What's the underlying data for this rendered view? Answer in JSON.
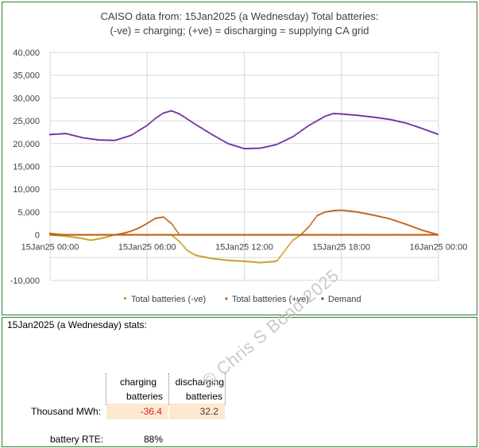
{
  "chart_data": {
    "type": "line",
    "title_line1": "CAISO data from:  15Jan2025  (a Wednesday)   Total batteries:",
    "title_line2": "(-ve) = charging;   (+ve) = discharging = supplying CA grid",
    "y_ticks": [
      "40,000",
      "35,000",
      "30,000",
      "25,000",
      "20,000",
      "15,000",
      "10,000",
      "5,000",
      "0",
      "-10,000"
    ],
    "ylim": [
      -10000,
      40000
    ],
    "x_ticks": [
      "15Jan25 00:00",
      "15Jan25 06:00",
      "15Jan25 12:00",
      "15Jan25 18:00",
      "16Jan25 00:00"
    ],
    "x_range_hours": [
      0,
      24
    ],
    "grid": true,
    "legend_position": "bottom",
    "series": [
      {
        "name": "Total batteries (-ve)",
        "color": "#c9a227",
        "marker": "square",
        "points": [
          [
            0,
            0
          ],
          [
            1,
            -300
          ],
          [
            2,
            -800
          ],
          [
            2.5,
            -1200
          ],
          [
            3,
            -900
          ],
          [
            3.5,
            -500
          ],
          [
            4,
            0
          ],
          [
            7.5,
            0
          ],
          [
            8,
            -1500
          ],
          [
            8.5,
            -3500
          ],
          [
            9,
            -4500
          ],
          [
            10,
            -5200
          ],
          [
            11,
            -5600
          ],
          [
            12,
            -5800
          ],
          [
            13,
            -6100
          ],
          [
            14,
            -5800
          ],
          [
            14.5,
            -3500
          ],
          [
            15,
            -1200
          ],
          [
            15.5,
            0
          ],
          [
            24,
            0
          ]
        ]
      },
      {
        "name": "Total batteries (+ve)",
        "color": "#c0601b",
        "marker": "dot",
        "points": [
          [
            0,
            300
          ],
          [
            0.5,
            100
          ],
          [
            1,
            0
          ],
          [
            4,
            0
          ],
          [
            4.5,
            300
          ],
          [
            5,
            800
          ],
          [
            5.5,
            1500
          ],
          [
            6,
            2500
          ],
          [
            6.5,
            3600
          ],
          [
            7,
            3900
          ],
          [
            7.5,
            2500
          ],
          [
            8,
            0
          ],
          [
            15.5,
            0
          ],
          [
            16,
            1800
          ],
          [
            16.5,
            4200
          ],
          [
            17,
            5000
          ],
          [
            17.5,
            5300
          ],
          [
            18,
            5400
          ],
          [
            19,
            5000
          ],
          [
            20,
            4300
          ],
          [
            21,
            3500
          ],
          [
            22,
            2300
          ],
          [
            23,
            1000
          ],
          [
            24,
            0
          ]
        ]
      },
      {
        "name": "Demand",
        "color": "#7030a0",
        "marker": "dot",
        "points": [
          [
            0,
            22000
          ],
          [
            1,
            22200
          ],
          [
            2,
            21300
          ],
          [
            3,
            20800
          ],
          [
            4,
            20700
          ],
          [
            5,
            21800
          ],
          [
            6,
            24000
          ],
          [
            6.5,
            25500
          ],
          [
            7,
            26700
          ],
          [
            7.5,
            27200
          ],
          [
            8,
            26500
          ],
          [
            9,
            24200
          ],
          [
            10,
            22000
          ],
          [
            11,
            20000
          ],
          [
            12,
            18900
          ],
          [
            13,
            19000
          ],
          [
            14,
            19800
          ],
          [
            15,
            21500
          ],
          [
            16,
            24000
          ],
          [
            17,
            26000
          ],
          [
            17.5,
            26600
          ],
          [
            18,
            26500
          ],
          [
            19,
            26200
          ],
          [
            20,
            25800
          ],
          [
            21,
            25300
          ],
          [
            22,
            24500
          ],
          [
            23,
            23300
          ],
          [
            24,
            22000
          ]
        ]
      }
    ]
  },
  "stats": {
    "heading": "15Jan2025  (a Wednesday) stats:",
    "col1_header_line1": "charging",
    "col1_header_line2": "batteries",
    "col2_header_line1": "discharging",
    "col2_header_line2": "batteries",
    "row_label": "Thousand MWh:",
    "charging_value": "-36.4",
    "discharging_value": "32.2",
    "rte_label": "battery RTE:",
    "rte_value": "88%",
    "negative_color": "#e02020",
    "cell_fill": "#fde9d2"
  },
  "watermark": "© Chris S Bond  2025"
}
